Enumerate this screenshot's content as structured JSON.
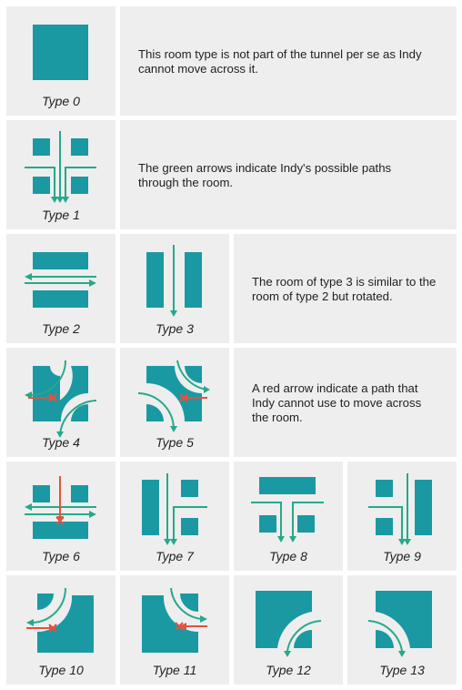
{
  "colors": {
    "tile": "#1a99a3",
    "green_arrow": "#25a98a",
    "red_arrow": "#e2523f",
    "cell_bg": "#eeeeee"
  },
  "rooms": [
    {
      "label": "Type 0"
    },
    {
      "label": "Type 1"
    },
    {
      "label": "Type 2"
    },
    {
      "label": "Type 3"
    },
    {
      "label": "Type 4"
    },
    {
      "label": "Type 5"
    },
    {
      "label": "Type 6"
    },
    {
      "label": "Type 7"
    },
    {
      "label": "Type 8"
    },
    {
      "label": "Type 9"
    },
    {
      "label": "Type 10"
    },
    {
      "label": "Type 11"
    },
    {
      "label": "Type 12"
    },
    {
      "label": "Type 13"
    }
  ],
  "descriptions": {
    "type0": "This room type is not part of the tunnel per se as Indy cannot move across it.",
    "type1": "The green arrows indicate Indy's possible paths through the room.",
    "type3": "The room of type 3 is similar to the room of type 2 but rotated.",
    "red_arrow": "A red arrow indicate a path that Indy cannot use to move across the room."
  }
}
